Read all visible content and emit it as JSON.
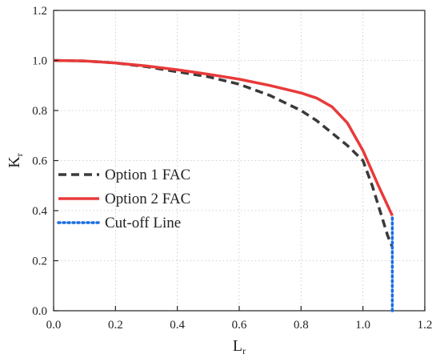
{
  "chart_data": {
    "type": "line",
    "title": "",
    "xlabel": {
      "main": "L",
      "sub": "r"
    },
    "ylabel": {
      "main": "K",
      "sub": "r"
    },
    "xlim": [
      0.0,
      1.2
    ],
    "ylim": [
      0.0,
      1.2
    ],
    "xticks": [
      "0.0",
      "0.2",
      "0.4",
      "0.6",
      "0.8",
      "1.0",
      "1.2"
    ],
    "yticks": [
      "0.0",
      "0.2",
      "0.4",
      "0.6",
      "0.8",
      "1.0",
      "1.2"
    ],
    "grid": true,
    "legend_position": "lower-left",
    "series": [
      {
        "name": "Option 1 FAC",
        "color": "#3a3a3a",
        "style": "dashed",
        "points": [
          [
            0.0,
            1.0
          ],
          [
            0.1,
            0.998
          ],
          [
            0.2,
            0.99
          ],
          [
            0.3,
            0.975
          ],
          [
            0.4,
            0.955
          ],
          [
            0.5,
            0.935
          ],
          [
            0.6,
            0.905
          ],
          [
            0.7,
            0.86
          ],
          [
            0.8,
            0.8
          ],
          [
            0.85,
            0.76
          ],
          [
            0.9,
            0.71
          ],
          [
            0.95,
            0.66
          ],
          [
            1.0,
            0.6
          ],
          [
            1.03,
            0.5
          ],
          [
            1.06,
            0.38
          ],
          [
            1.08,
            0.3
          ],
          [
            1.095,
            0.255
          ]
        ]
      },
      {
        "name": "Option 2 FAC",
        "color": "#e83a3a",
        "style": "solid",
        "points": [
          [
            0.0,
            1.0
          ],
          [
            0.1,
            0.998
          ],
          [
            0.2,
            0.99
          ],
          [
            0.3,
            0.978
          ],
          [
            0.4,
            0.963
          ],
          [
            0.5,
            0.945
          ],
          [
            0.6,
            0.925
          ],
          [
            0.7,
            0.9
          ],
          [
            0.8,
            0.87
          ],
          [
            0.85,
            0.85
          ],
          [
            0.9,
            0.815
          ],
          [
            0.95,
            0.75
          ],
          [
            1.0,
            0.64
          ],
          [
            1.05,
            0.5
          ],
          [
            1.095,
            0.38
          ]
        ]
      },
      {
        "name": "Cut-off Line",
        "color": "#1a6fe0",
        "style": "dotted",
        "points": [
          [
            1.095,
            0.0
          ],
          [
            1.095,
            0.38
          ]
        ]
      }
    ]
  }
}
